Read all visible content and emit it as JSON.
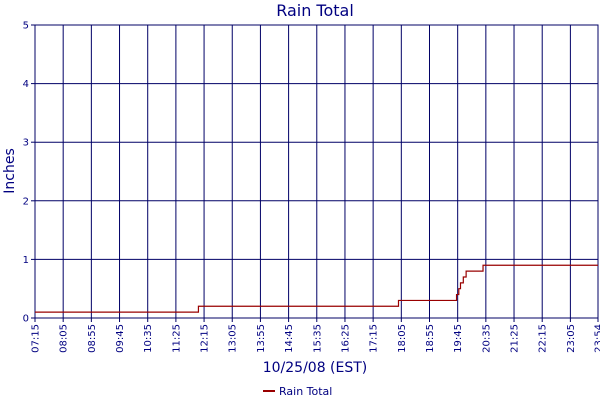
{
  "chart_data": {
    "type": "line",
    "title": "Rain Total",
    "xlabel": "10/25/08 (EST)",
    "ylabel": "Inches",
    "ylim": [
      0,
      5
    ],
    "yticks": [
      "0",
      "1",
      "2",
      "3",
      "4",
      "5"
    ],
    "xticks": [
      "07:15",
      "08:05",
      "08:55",
      "09:45",
      "10:35",
      "11:25",
      "12:15",
      "13:05",
      "13:55",
      "14:45",
      "15:35",
      "16:25",
      "17:15",
      "18:05",
      "18:55",
      "19:45",
      "20:35",
      "21:25",
      "22:15",
      "23:05",
      "23:54"
    ],
    "grid": true,
    "legend_position": "bottom-center",
    "colors": {
      "series": "#990000",
      "grid": "#000066",
      "text": "#000080"
    },
    "series": [
      {
        "name": "Rain Total",
        "step": true,
        "x": [
          "07:15",
          "12:05",
          "18:00",
          "19:43",
          "19:47",
          "19:50",
          "19:55",
          "20:00",
          "20:10",
          "20:30",
          "21:25",
          "23:54"
        ],
        "values": [
          0.1,
          0.2,
          0.3,
          0.4,
          0.5,
          0.6,
          0.7,
          0.8,
          0.8,
          0.9,
          0.9,
          0.9
        ]
      }
    ]
  }
}
